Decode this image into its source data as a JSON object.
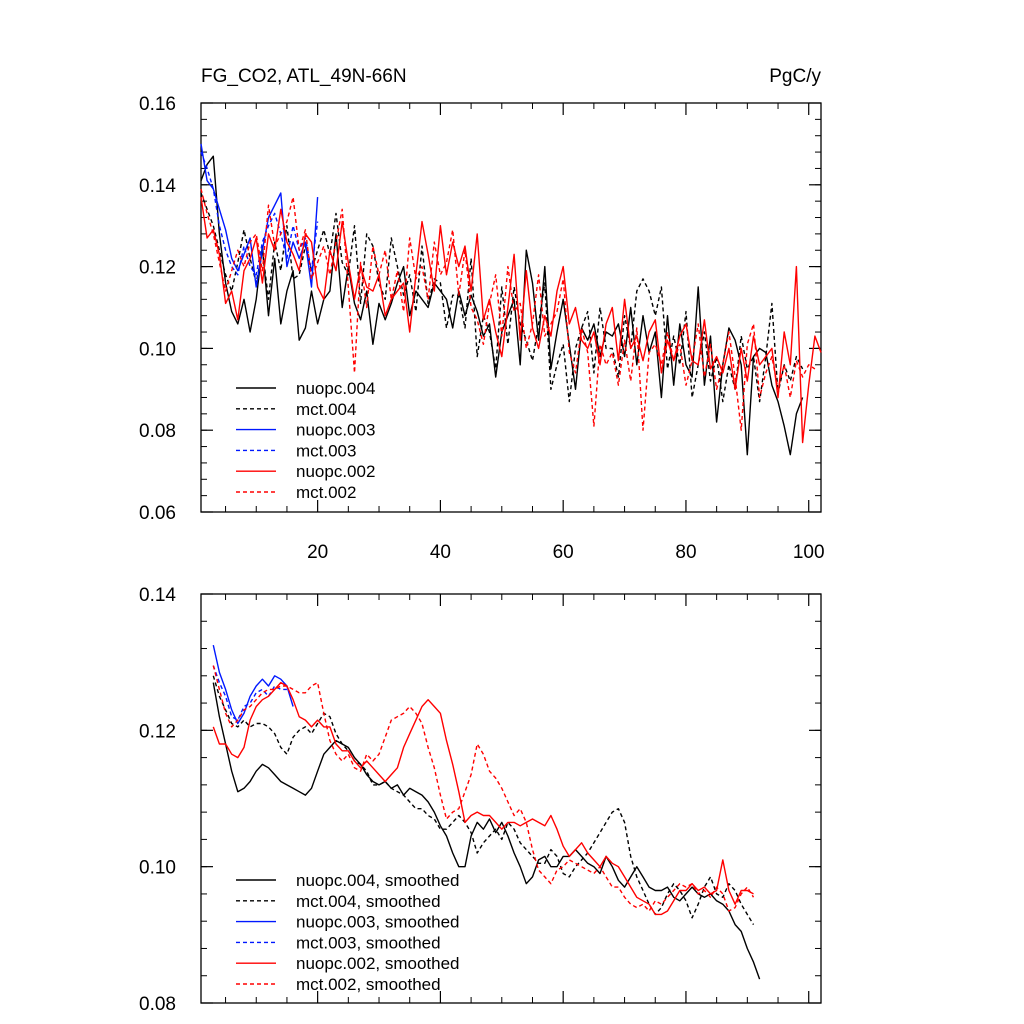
{
  "chart_data": [
    {
      "type": "line",
      "title": "FG_CO2, ATL_49N-66N",
      "units": "PgC/y",
      "xlim": [
        1,
        102
      ],
      "ylim": [
        0.06,
        0.16
      ],
      "xticks": [
        20,
        40,
        60,
        80,
        100
      ],
      "yticks": [
        0.06,
        0.08,
        0.1,
        0.12,
        0.14,
        0.16
      ],
      "ytick_labels": [
        "0.06",
        "0.08",
        "0.10",
        "0.12",
        "0.14",
        "0.16"
      ],
      "legend_position": "bottom-left",
      "series": [
        {
          "name": "nuopc.004",
          "color": "#000000",
          "dash": false,
          "x_start": 1,
          "values": [
            0.141,
            0.145,
            0.147,
            0.128,
            0.116,
            0.109,
            0.106,
            0.112,
            0.104,
            0.112,
            0.125,
            0.108,
            0.122,
            0.106,
            0.114,
            0.119,
            0.102,
            0.105,
            0.114,
            0.106,
            0.112,
            0.114,
            0.128,
            0.11,
            0.12,
            0.111,
            0.107,
            0.114,
            0.101,
            0.111,
            0.107,
            0.111,
            0.116,
            0.12,
            0.108,
            0.114,
            0.112,
            0.11,
            0.116,
            0.114,
            0.112,
            0.105,
            0.114,
            0.108,
            0.113,
            0.109,
            0.103,
            0.106,
            0.093,
            0.104,
            0.108,
            0.112,
            0.096,
            0.124,
            0.116,
            0.102,
            0.12,
            0.095,
            0.104,
            0.112,
            0.101,
            0.09,
            0.105,
            0.102,
            0.106,
            0.098,
            0.104,
            0.103,
            0.106,
            0.098,
            0.11,
            0.096,
            0.108,
            0.099,
            0.104,
            0.088,
            0.108,
            0.091,
            0.106,
            0.096,
            0.093,
            0.115,
            0.091,
            0.103,
            0.082,
            0.096,
            0.105,
            0.102,
            0.096,
            0.074,
            0.098,
            0.1,
            0.099,
            0.091,
            0.087,
            0.081,
            0.074,
            0.084,
            0.088
          ]
        },
        {
          "name": "mct.004",
          "color": "#000000",
          "dash": true,
          "x_start": 1,
          "values": [
            0.138,
            0.134,
            0.13,
            0.124,
            0.118,
            0.114,
            0.121,
            0.129,
            0.122,
            0.116,
            0.124,
            0.112,
            0.126,
            0.119,
            0.13,
            0.117,
            0.118,
            0.125,
            0.119,
            0.124,
            0.129,
            0.123,
            0.133,
            0.121,
            0.118,
            0.13,
            0.111,
            0.128,
            0.125,
            0.116,
            0.112,
            0.127,
            0.12,
            0.113,
            0.118,
            0.109,
            0.125,
            0.111,
            0.117,
            0.116,
            0.105,
            0.113,
            0.113,
            0.105,
            0.122,
            0.098,
            0.108,
            0.104,
            0.095,
            0.115,
            0.101,
            0.115,
            0.106,
            0.102,
            0.097,
            0.106,
            0.116,
            0.09,
            0.096,
            0.101,
            0.087,
            0.1,
            0.105,
            0.109,
            0.094,
            0.11,
            0.1,
            0.1,
            0.093,
            0.108,
            0.1,
            0.114,
            0.117,
            0.114,
            0.108,
            0.115,
            0.095,
            0.103,
            0.096,
            0.109,
            0.088,
            0.096,
            0.104,
            0.092,
            0.098,
            0.087,
            0.096,
            0.09,
            0.103,
            0.095,
            0.098,
            0.087,
            0.098,
            0.111,
            0.089,
            0.096,
            0.092,
            0.098,
            0.095
          ]
        },
        {
          "name": "nuopc.003",
          "color": "#0018ff",
          "dash": false,
          "x_start": 1,
          "values": [
            0.15,
            0.141,
            0.139,
            0.134,
            0.129,
            0.122,
            0.119,
            0.123,
            0.127,
            0.115,
            0.124,
            0.132,
            0.135,
            0.138,
            0.12,
            0.126,
            0.122,
            0.126,
            0.115,
            0.137
          ]
        },
        {
          "name": "mct.003",
          "color": "#0018ff",
          "dash": true,
          "x_start": 1,
          "values": [
            0.148,
            0.144,
            0.139,
            0.13,
            0.124,
            0.12,
            0.118,
            0.125,
            0.12,
            0.118,
            0.126,
            0.13,
            0.133,
            0.128,
            0.122,
            0.13,
            0.124,
            0.127,
            0.119,
            0.131
          ]
        },
        {
          "name": "nuopc.002",
          "color": "#ff0000",
          "dash": false,
          "x_start": 1,
          "values": [
            0.137,
            0.127,
            0.129,
            0.123,
            0.111,
            0.114,
            0.107,
            0.119,
            0.122,
            0.127,
            0.116,
            0.128,
            0.124,
            0.134,
            0.126,
            0.123,
            0.119,
            0.128,
            0.126,
            0.115,
            0.112,
            0.124,
            0.119,
            0.131,
            0.121,
            0.112,
            0.12,
            0.115,
            0.114,
            0.118,
            0.108,
            0.112,
            0.114,
            0.116,
            0.104,
            0.118,
            0.131,
            0.123,
            0.114,
            0.13,
            0.118,
            0.126,
            0.12,
            0.125,
            0.114,
            0.128,
            0.107,
            0.112,
            0.104,
            0.098,
            0.11,
            0.123,
            0.102,
            0.119,
            0.105,
            0.1,
            0.108,
            0.103,
            0.114,
            0.12,
            0.106,
            0.11,
            0.102,
            0.1,
            0.104,
            0.096,
            0.106,
            0.11,
            0.097,
            0.112,
            0.1,
            0.103,
            0.097,
            0.104,
            0.107,
            0.094,
            0.102,
            0.097,
            0.103,
            0.106,
            0.097,
            0.096,
            0.107,
            0.095,
            0.098,
            0.094,
            0.1,
            0.09,
            0.1,
            0.092,
            0.103,
            0.096,
            0.098,
            0.1,
            0.088,
            0.104,
            0.096,
            0.12,
            0.077,
            0.091,
            0.103,
            0.099
          ]
        },
        {
          "name": "mct.002",
          "color": "#ff0000",
          "dash": true,
          "x_start": 1,
          "values": [
            0.139,
            0.133,
            0.128,
            0.121,
            0.114,
            0.119,
            0.124,
            0.12,
            0.126,
            0.128,
            0.119,
            0.135,
            0.125,
            0.128,
            0.131,
            0.137,
            0.124,
            0.129,
            0.117,
            0.121,
            0.125,
            0.118,
            0.126,
            0.134,
            0.115,
            0.094,
            0.121,
            0.11,
            0.125,
            0.118,
            0.124,
            0.112,
            0.119,
            0.109,
            0.127,
            0.117,
            0.12,
            0.112,
            0.126,
            0.118,
            0.121,
            0.129,
            0.113,
            0.124,
            0.11,
            0.107,
            0.101,
            0.111,
            0.118,
            0.103,
            0.12,
            0.109,
            0.111,
            0.1,
            0.106,
            0.118,
            0.103,
            0.106,
            0.109,
            0.117,
            0.099,
            0.094,
            0.105,
            0.099,
            0.081,
            0.101,
            0.096,
            0.099,
            0.091,
            0.102,
            0.092,
            0.105,
            0.08,
            0.099,
            0.101,
            0.096,
            0.104,
            0.097,
            0.101,
            0.091,
            0.097,
            0.106,
            0.093,
            0.101,
            0.09,
            0.096,
            0.104,
            0.093,
            0.08,
            0.101,
            0.106,
            0.088,
            0.094,
            0.098,
            0.09,
            0.096,
            0.088,
            0.097,
            0.093,
            0.096,
            0.095
          ]
        }
      ]
    },
    {
      "type": "line",
      "title": "",
      "xlim": [
        1,
        102
      ],
      "ylim": [
        0.08,
        0.14
      ],
      "xticks": [
        20,
        40,
        60,
        80,
        100
      ],
      "yticks": [
        0.08,
        0.1,
        0.12,
        0.14
      ],
      "ytick_labels": [
        "0.08",
        "0.10",
        "0.12",
        "0.14"
      ],
      "legend_position": "bottom-left",
      "series": [
        {
          "name": "nuopc.004, smoothed",
          "color": "#000000",
          "dash": false,
          "x_start": 3,
          "values": [
            0.127,
            0.122,
            0.118,
            0.114,
            0.111,
            0.1115,
            0.1125,
            0.114,
            0.115,
            0.1145,
            0.1135,
            0.1125,
            0.112,
            0.1115,
            0.111,
            0.1105,
            0.1115,
            0.114,
            0.1165,
            0.1175,
            0.1185,
            0.118,
            0.1175,
            0.116,
            0.115,
            0.1135,
            0.1125,
            0.112,
            0.1125,
            0.1115,
            0.112,
            0.1105,
            0.1115,
            0.111,
            0.1105,
            0.1095,
            0.108,
            0.106,
            0.1045,
            0.102,
            0.1,
            0.1,
            0.1045,
            0.1065,
            0.1055,
            0.107,
            0.105,
            0.1065,
            0.1045,
            0.102,
            0.1,
            0.0975,
            0.0985,
            0.101,
            0.1015,
            0.1,
            0.1,
            0.1015,
            0.1015,
            0.1025,
            0.1015,
            0.1005,
            0.1,
            0.099,
            0.1015,
            0.1,
            0.098,
            0.097,
            0.0985,
            0.1,
            0.0985,
            0.097,
            0.0965,
            0.0965,
            0.097,
            0.0955,
            0.095,
            0.096,
            0.097,
            0.096,
            0.0955,
            0.096,
            0.095,
            0.0945,
            0.0935,
            0.0915,
            0.0905,
            0.088,
            0.086,
            0.0835
          ]
        },
        {
          "name": "mct.004, smoothed",
          "color": "#000000",
          "dash": true,
          "x_start": 3,
          "values": [
            0.128,
            0.125,
            0.123,
            0.121,
            0.1205,
            0.1215,
            0.1205,
            0.121,
            0.121,
            0.1205,
            0.1195,
            0.1175,
            0.1165,
            0.119,
            0.12,
            0.1205,
            0.1195,
            0.121,
            0.1225,
            0.122,
            0.1195,
            0.118,
            0.117,
            0.1155,
            0.115,
            0.114,
            0.112,
            0.112,
            0.1125,
            0.1115,
            0.111,
            0.1105,
            0.1095,
            0.1085,
            0.1085,
            0.1075,
            0.107,
            0.1055,
            0.1055,
            0.1065,
            0.1075,
            0.1065,
            0.105,
            0.102,
            0.1035,
            0.1045,
            0.1055,
            0.104,
            0.1065,
            0.1055,
            0.1035,
            0.1025,
            0.1015,
            0.1005,
            0.1005,
            0.1025,
            0.1015,
            0.099,
            0.0985,
            0.1,
            0.101,
            0.102,
            0.1035,
            0.105,
            0.1065,
            0.108,
            0.1085,
            0.1065,
            0.1015,
            0.0985,
            0.0965,
            0.0945,
            0.093,
            0.094,
            0.096,
            0.0975,
            0.0965,
            0.095,
            0.0925,
            0.0945,
            0.097,
            0.0985,
            0.096,
            0.0955,
            0.0975,
            0.0965,
            0.0945,
            0.093,
            0.0915
          ]
        },
        {
          "name": "nuopc.003, smoothed",
          "color": "#0018ff",
          "dash": false,
          "x_start": 3,
          "values": [
            0.1325,
            0.1285,
            0.126,
            0.123,
            0.121,
            0.1225,
            0.125,
            0.1265,
            0.1275,
            0.1265,
            0.128,
            0.1275,
            0.1265,
            0.1235
          ]
        },
        {
          "name": "mct.003, smoothed",
          "color": "#0018ff",
          "dash": true,
          "x_start": 3,
          "values": [
            0.1295,
            0.127,
            0.125,
            0.122,
            0.1215,
            0.1235,
            0.124,
            0.1255,
            0.126,
            0.125,
            0.1265,
            0.126,
            0.126
          ]
        },
        {
          "name": "nuopc.002, smoothed",
          "color": "#ff0000",
          "dash": false,
          "x_start": 3,
          "values": [
            0.1205,
            0.118,
            0.118,
            0.1165,
            0.116,
            0.1175,
            0.1215,
            0.1235,
            0.1245,
            0.125,
            0.126,
            0.127,
            0.1265,
            0.1245,
            0.122,
            0.1215,
            0.1205,
            0.1215,
            0.1205,
            0.1205,
            0.118,
            0.117,
            0.117,
            0.1155,
            0.1145,
            0.1155,
            0.1145,
            0.1135,
            0.1125,
            0.1135,
            0.1145,
            0.1175,
            0.1195,
            0.1215,
            0.1235,
            0.1245,
            0.1235,
            0.1225,
            0.1185,
            0.115,
            0.111,
            0.1065,
            0.1075,
            0.108,
            0.1075,
            0.1075,
            0.1065,
            0.1055,
            0.1065,
            0.1065,
            0.106,
            0.1065,
            0.107,
            0.1065,
            0.106,
            0.1075,
            0.1055,
            0.103,
            0.1015,
            0.1025,
            0.1035,
            0.102,
            0.101,
            0.1,
            0.1015,
            0.1005,
            0.1,
            0.0985,
            0.097,
            0.0955,
            0.095,
            0.0945,
            0.093,
            0.093,
            0.0935,
            0.095,
            0.0965,
            0.0965,
            0.0975,
            0.0965,
            0.097,
            0.096,
            0.0965,
            0.101,
            0.0965,
            0.0945,
            0.0965,
            0.0965,
            0.096
          ]
        },
        {
          "name": "mct.002, smoothed",
          "color": "#ff0000",
          "dash": true,
          "x_start": 3,
          "values": [
            0.1295,
            0.126,
            0.1225,
            0.1205,
            0.1215,
            0.123,
            0.1235,
            0.1245,
            0.1255,
            0.126,
            0.126,
            0.1265,
            0.1265,
            0.126,
            0.1255,
            0.1255,
            0.1265,
            0.127,
            0.1225,
            0.1185,
            0.1165,
            0.1155,
            0.1165,
            0.1145,
            0.114,
            0.1165,
            0.1155,
            0.1165,
            0.119,
            0.1215,
            0.122,
            0.1225,
            0.1235,
            0.1225,
            0.121,
            0.1175,
            0.1145,
            0.1105,
            0.107,
            0.108,
            0.1085,
            0.111,
            0.1135,
            0.118,
            0.1165,
            0.114,
            0.113,
            0.1115,
            0.1095,
            0.1075,
            0.1085,
            0.1065,
            0.1025,
            0.0995,
            0.0985,
            0.0975,
            0.0995,
            0.1,
            0.101,
            0.1005,
            0.1,
            0.0995,
            0.099,
            0.1,
            0.0985,
            0.097,
            0.097,
            0.0955,
            0.0945,
            0.094,
            0.0945,
            0.0935,
            0.095,
            0.0945,
            0.0955,
            0.0965,
            0.0975,
            0.097,
            0.0975,
            0.096,
            0.0965,
            0.0955,
            0.097,
            0.096,
            0.0935,
            0.094,
            0.096,
            0.097,
            0.0955
          ]
        }
      ]
    }
  ]
}
